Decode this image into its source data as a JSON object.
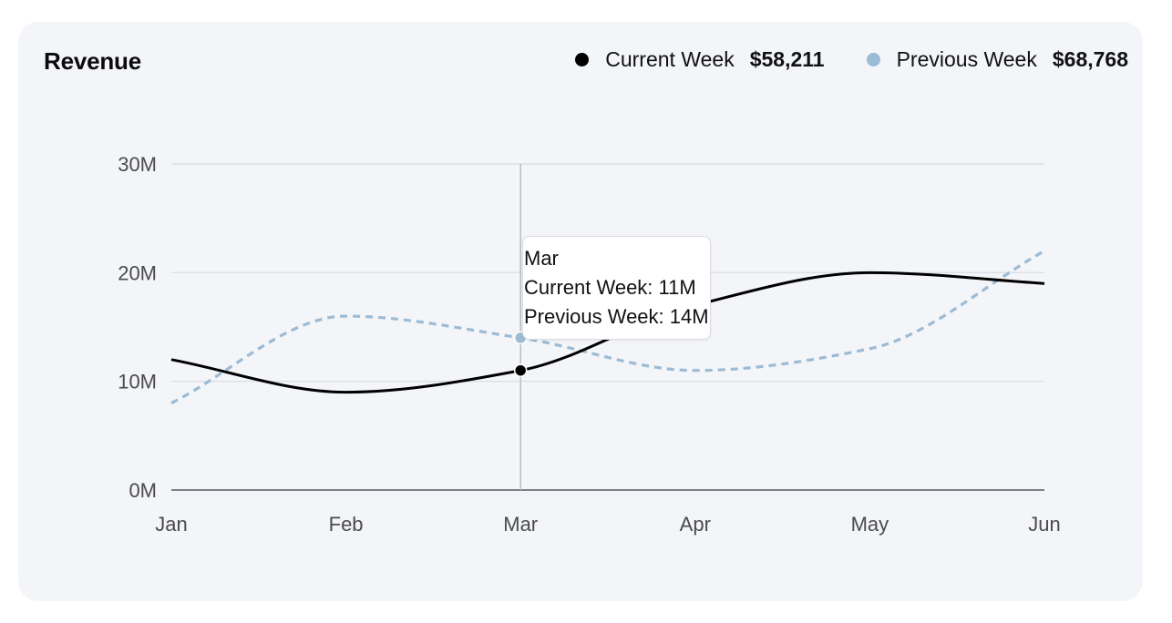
{
  "header": {
    "title": "Revenue"
  },
  "legend": [
    {
      "label": "Current Week",
      "value": "$58,211",
      "color": "#000000"
    },
    {
      "label": "Previous Week",
      "value": "$68,768",
      "color": "#9cbbd5"
    }
  ],
  "tooltip": {
    "category": "Mar",
    "lines": [
      "Current Week: 11M",
      "Previous Week: 14M"
    ]
  },
  "chart_data": {
    "type": "line",
    "categories": [
      "Jan",
      "Feb",
      "Mar",
      "Apr",
      "May",
      "Jun"
    ],
    "series": [
      {
        "name": "Current Week",
        "values": [
          12,
          9,
          11,
          17,
          20,
          19
        ],
        "color": "#000000",
        "style": "solid"
      },
      {
        "name": "Previous Week",
        "values": [
          8,
          16,
          14,
          11,
          13,
          22
        ],
        "color": "#9cbbd5",
        "style": "dashed"
      }
    ],
    "yticks": [
      "0M",
      "10M",
      "20M",
      "30M"
    ],
    "ylim": [
      0,
      30
    ],
    "grid": true,
    "legend_position": "top-right",
    "highlighted_category": "Mar"
  }
}
